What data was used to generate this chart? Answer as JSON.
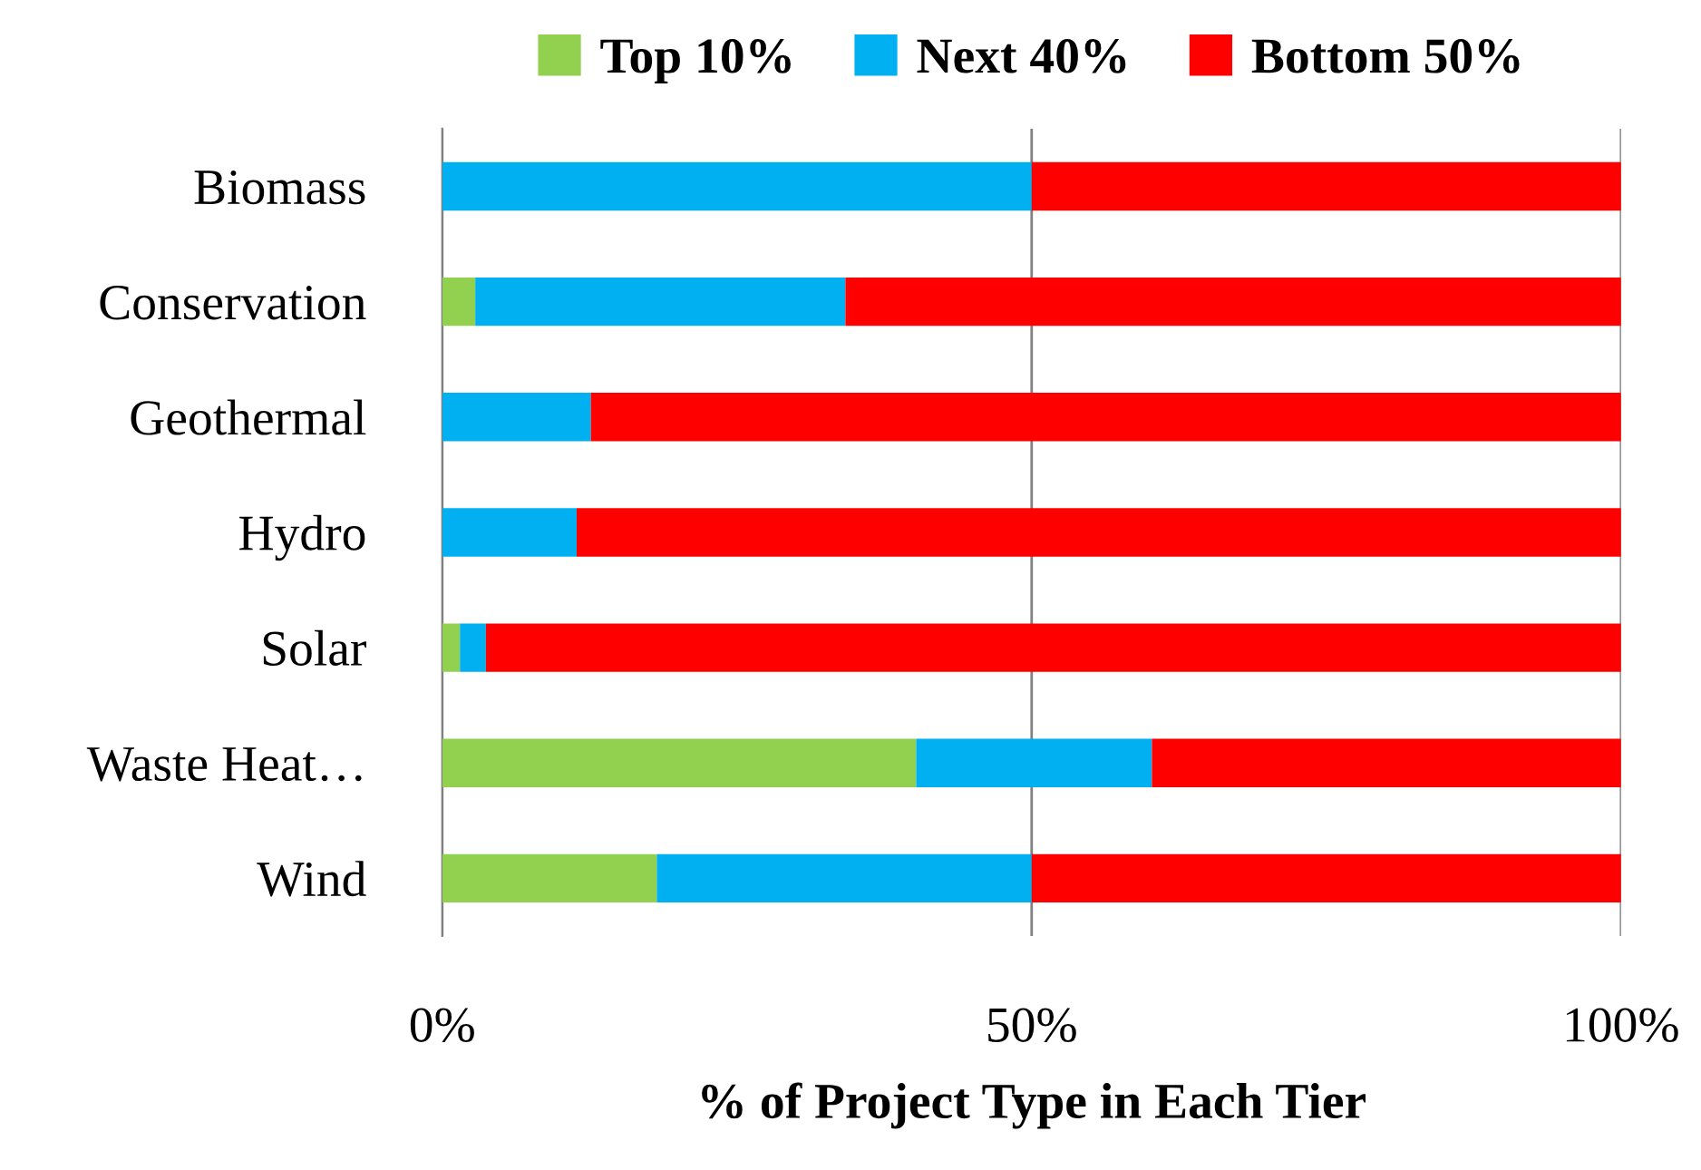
{
  "chart_data": {
    "type": "bar",
    "orientation": "horizontal",
    "stacked": true,
    "categories": [
      "Biomass",
      "Conservation",
      "Geothermal",
      "Hydro",
      "Solar",
      "Waste Heat…",
      "Wind"
    ],
    "series": [
      {
        "name": "Top 10%",
        "color": "#92d050",
        "values": [
          0,
          2.8,
          0,
          0,
          1.5,
          40.2,
          18.2
        ]
      },
      {
        "name": "Next 40%",
        "color": "#00b0f0",
        "values": [
          50,
          31.4,
          12.6,
          11.4,
          2.2,
          20,
          31.8
        ]
      },
      {
        "name": "Bottom 50%",
        "color": "#ff0000",
        "values": [
          50,
          65.8,
          87.4,
          88.6,
          96.3,
          39.8,
          50
        ]
      }
    ],
    "xlabel": "% of Project Type in Each Tier",
    "xlim": [
      0,
      100
    ],
    "xticks": [
      {
        "value": 0,
        "label": "0%"
      },
      {
        "value": 50,
        "label": "50%"
      },
      {
        "value": 100,
        "label": "100%"
      }
    ],
    "grid": "x",
    "legend": "top"
  }
}
